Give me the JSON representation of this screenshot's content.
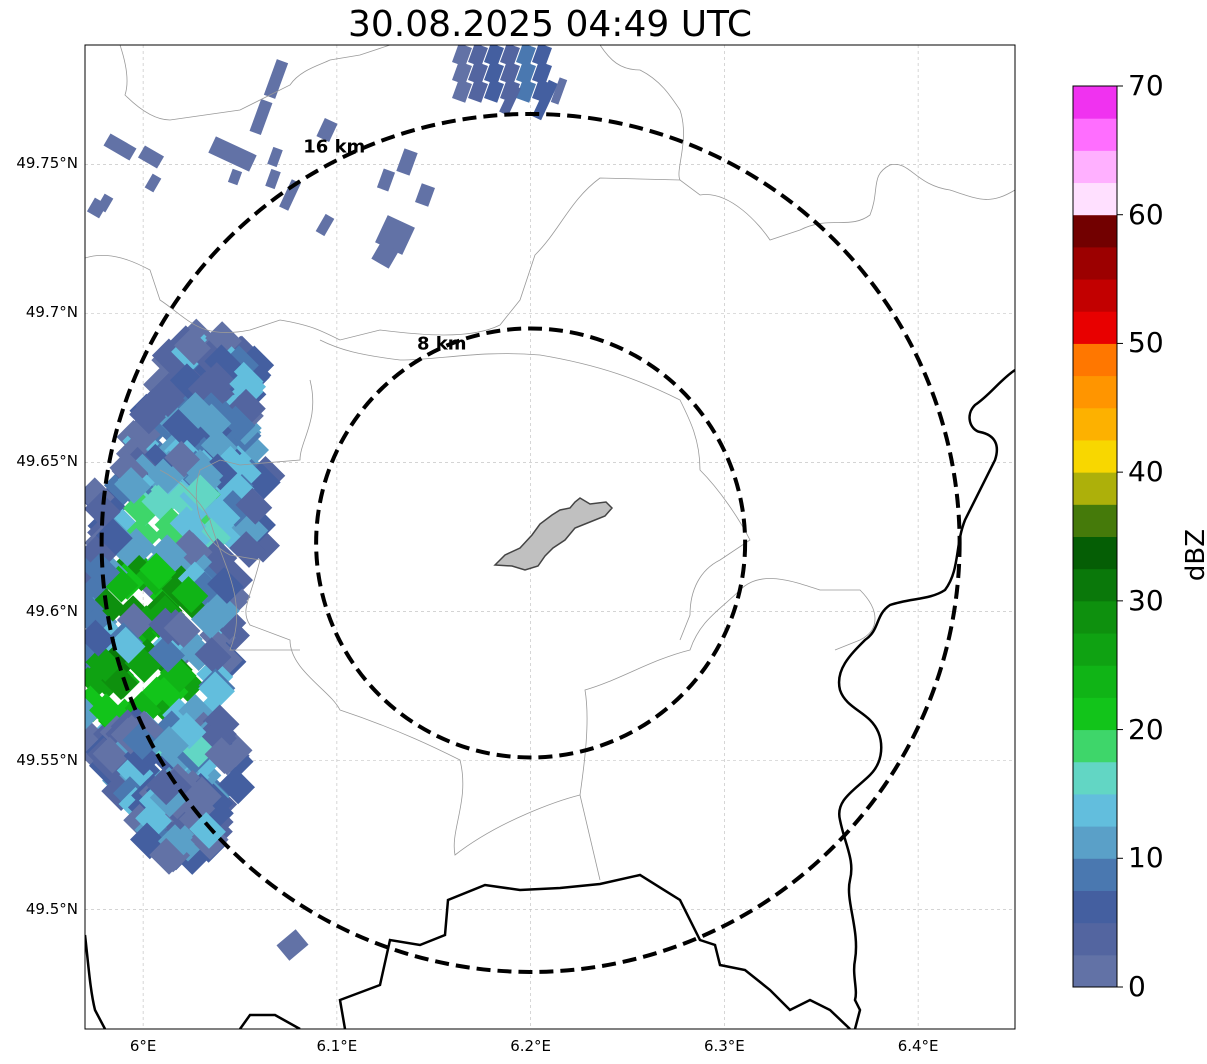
{
  "title": "30.08.2025 04:49 UTC",
  "axes": {
    "lat_ticks": [
      "49.75°N",
      "49.7°N",
      "49.65°N",
      "49.6°N",
      "49.55°N",
      "49.5°N"
    ],
    "lon_ticks": [
      "6°E",
      "6.1°E",
      "6.2°E",
      "6.3°E",
      "6.4°E"
    ],
    "gridlines": true,
    "lon_range": [
      5.97,
      6.45
    ],
    "lat_range": [
      49.46,
      49.79
    ]
  },
  "range_rings": [
    {
      "label": "8 km",
      "radius_km": 8
    },
    {
      "label": "16 km",
      "radius_km": 16
    }
  ],
  "radar_center": {
    "lon": 6.2,
    "lat": 49.623
  },
  "colorbar": {
    "label": "dBZ",
    "ticks": [
      "0",
      "10",
      "20",
      "30",
      "40",
      "50",
      "60",
      "70"
    ],
    "range": [
      0,
      70
    ],
    "colors": [
      "#6272a6",
      "#5365a0",
      "#445fa0",
      "#4a78b0",
      "#5aa0c8",
      "#62bedd",
      "#62d6c4",
      "#3ed66a",
      "#12c41a",
      "#10b416",
      "#0fa212",
      "#0e900e",
      "#0a780a",
      "#055e05",
      "#457a0a",
      "#adb00a",
      "#f8d700",
      "#fdb100",
      "#ff9500",
      "#ff7700",
      "#e80000",
      "#c20000",
      "#9c0000",
      "#720000",
      "#ffe0ff",
      "#ffb0ff",
      "#ff6eff",
      "#f032f0"
    ]
  }
}
